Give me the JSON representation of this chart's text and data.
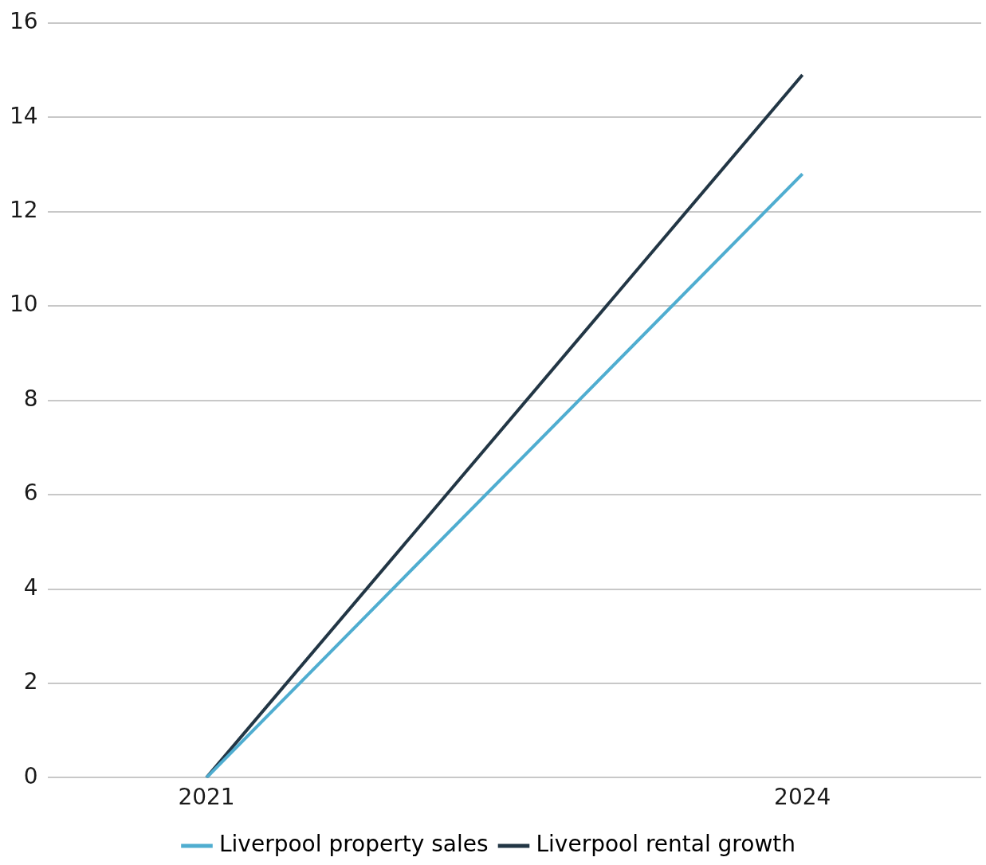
{
  "chart_data": {
    "type": "line",
    "x": [
      2021,
      2024
    ],
    "xlim": [
      2020.2,
      2024.9
    ],
    "xticks": [
      2021,
      2024
    ],
    "ylim": [
      0,
      16
    ],
    "yticks": [
      0,
      2,
      4,
      6,
      8,
      10,
      12,
      14,
      16
    ],
    "grid": "y",
    "legend": "bottom",
    "marker": "none",
    "line_style": "solid",
    "series": [
      {
        "name": "Liverpool property sales",
        "color": "#4fadd0",
        "values": [
          0,
          12.8
        ]
      },
      {
        "name": "Liverpool rental growth",
        "color": "#223645",
        "values": [
          0,
          14.9
        ]
      }
    ]
  }
}
